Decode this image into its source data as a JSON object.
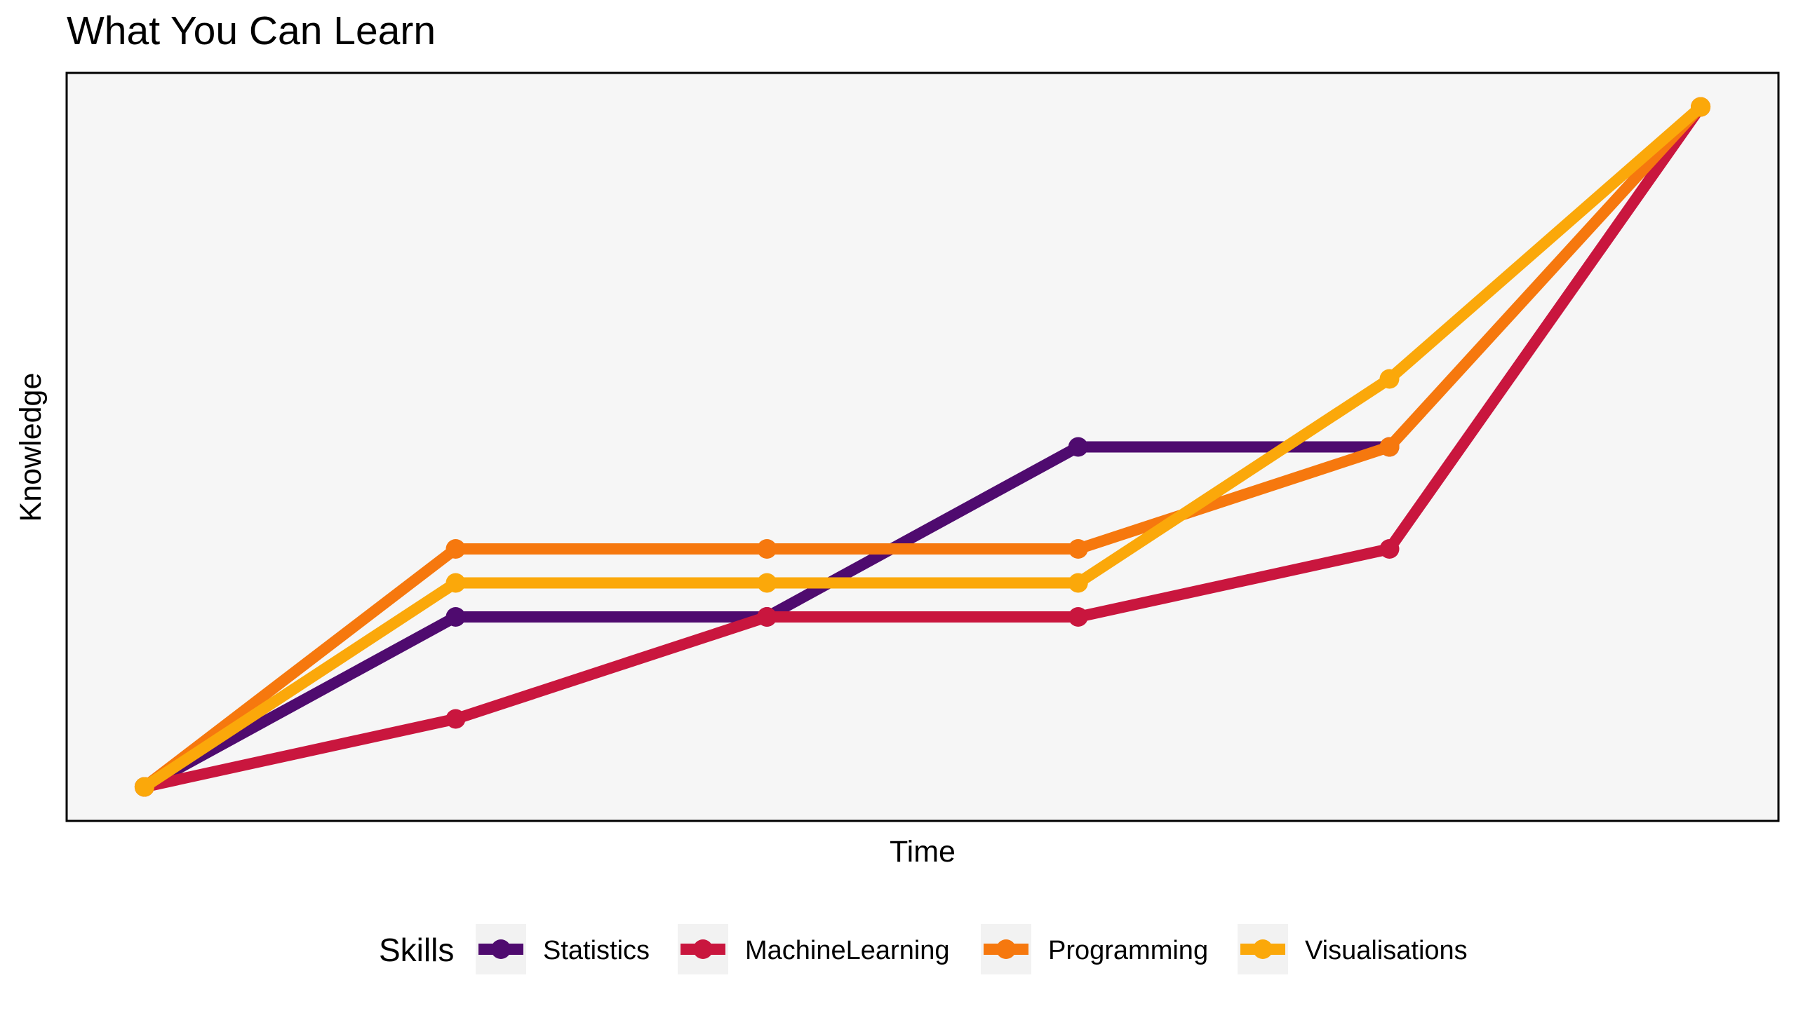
{
  "chart_data": {
    "type": "line",
    "title": "What You Can Learn",
    "xlabel": "Time",
    "ylabel": "Knowledge",
    "x": [
      1,
      2,
      3,
      4,
      5,
      6
    ],
    "xlim": [
      0.75,
      6.25
    ],
    "ylim": [
      0.5,
      11.5
    ],
    "grid": false,
    "axis_ticks_shown": false,
    "legend_title": "Skills",
    "legend_position": "bottom",
    "series": [
      {
        "name": "Statistics",
        "color": "#4f0b6f",
        "values": [
          1,
          3.5,
          3.5,
          6,
          6,
          null
        ]
      },
      {
        "name": "MachineLearning",
        "color": "#c9163e",
        "values": [
          1,
          2,
          3.5,
          3.5,
          4.5,
          11
        ]
      },
      {
        "name": "Programming",
        "color": "#f6780e",
        "values": [
          1,
          4.5,
          4.5,
          4.5,
          6,
          11
        ]
      },
      {
        "name": "Visualisations",
        "color": "#fba80a",
        "values": [
          1,
          4,
          4,
          4,
          7,
          11
        ]
      }
    ],
    "panel_background": "#f6f6f6"
  }
}
